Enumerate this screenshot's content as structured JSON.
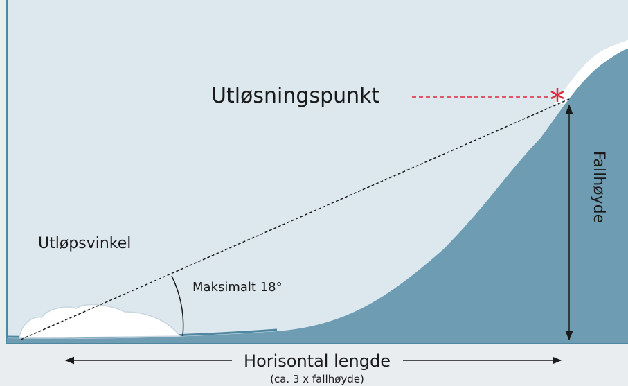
{
  "labels": {
    "release_point": "Utløsningspunkt",
    "runout_angle": "Utløpsvinkel",
    "max_angle": "Maksimalt 18°",
    "fall_height": "Fallhøyde",
    "horizontal_length": "Horisontal lengde",
    "horizontal_note": "(ca. 3 x fallhøyde)"
  }
}
